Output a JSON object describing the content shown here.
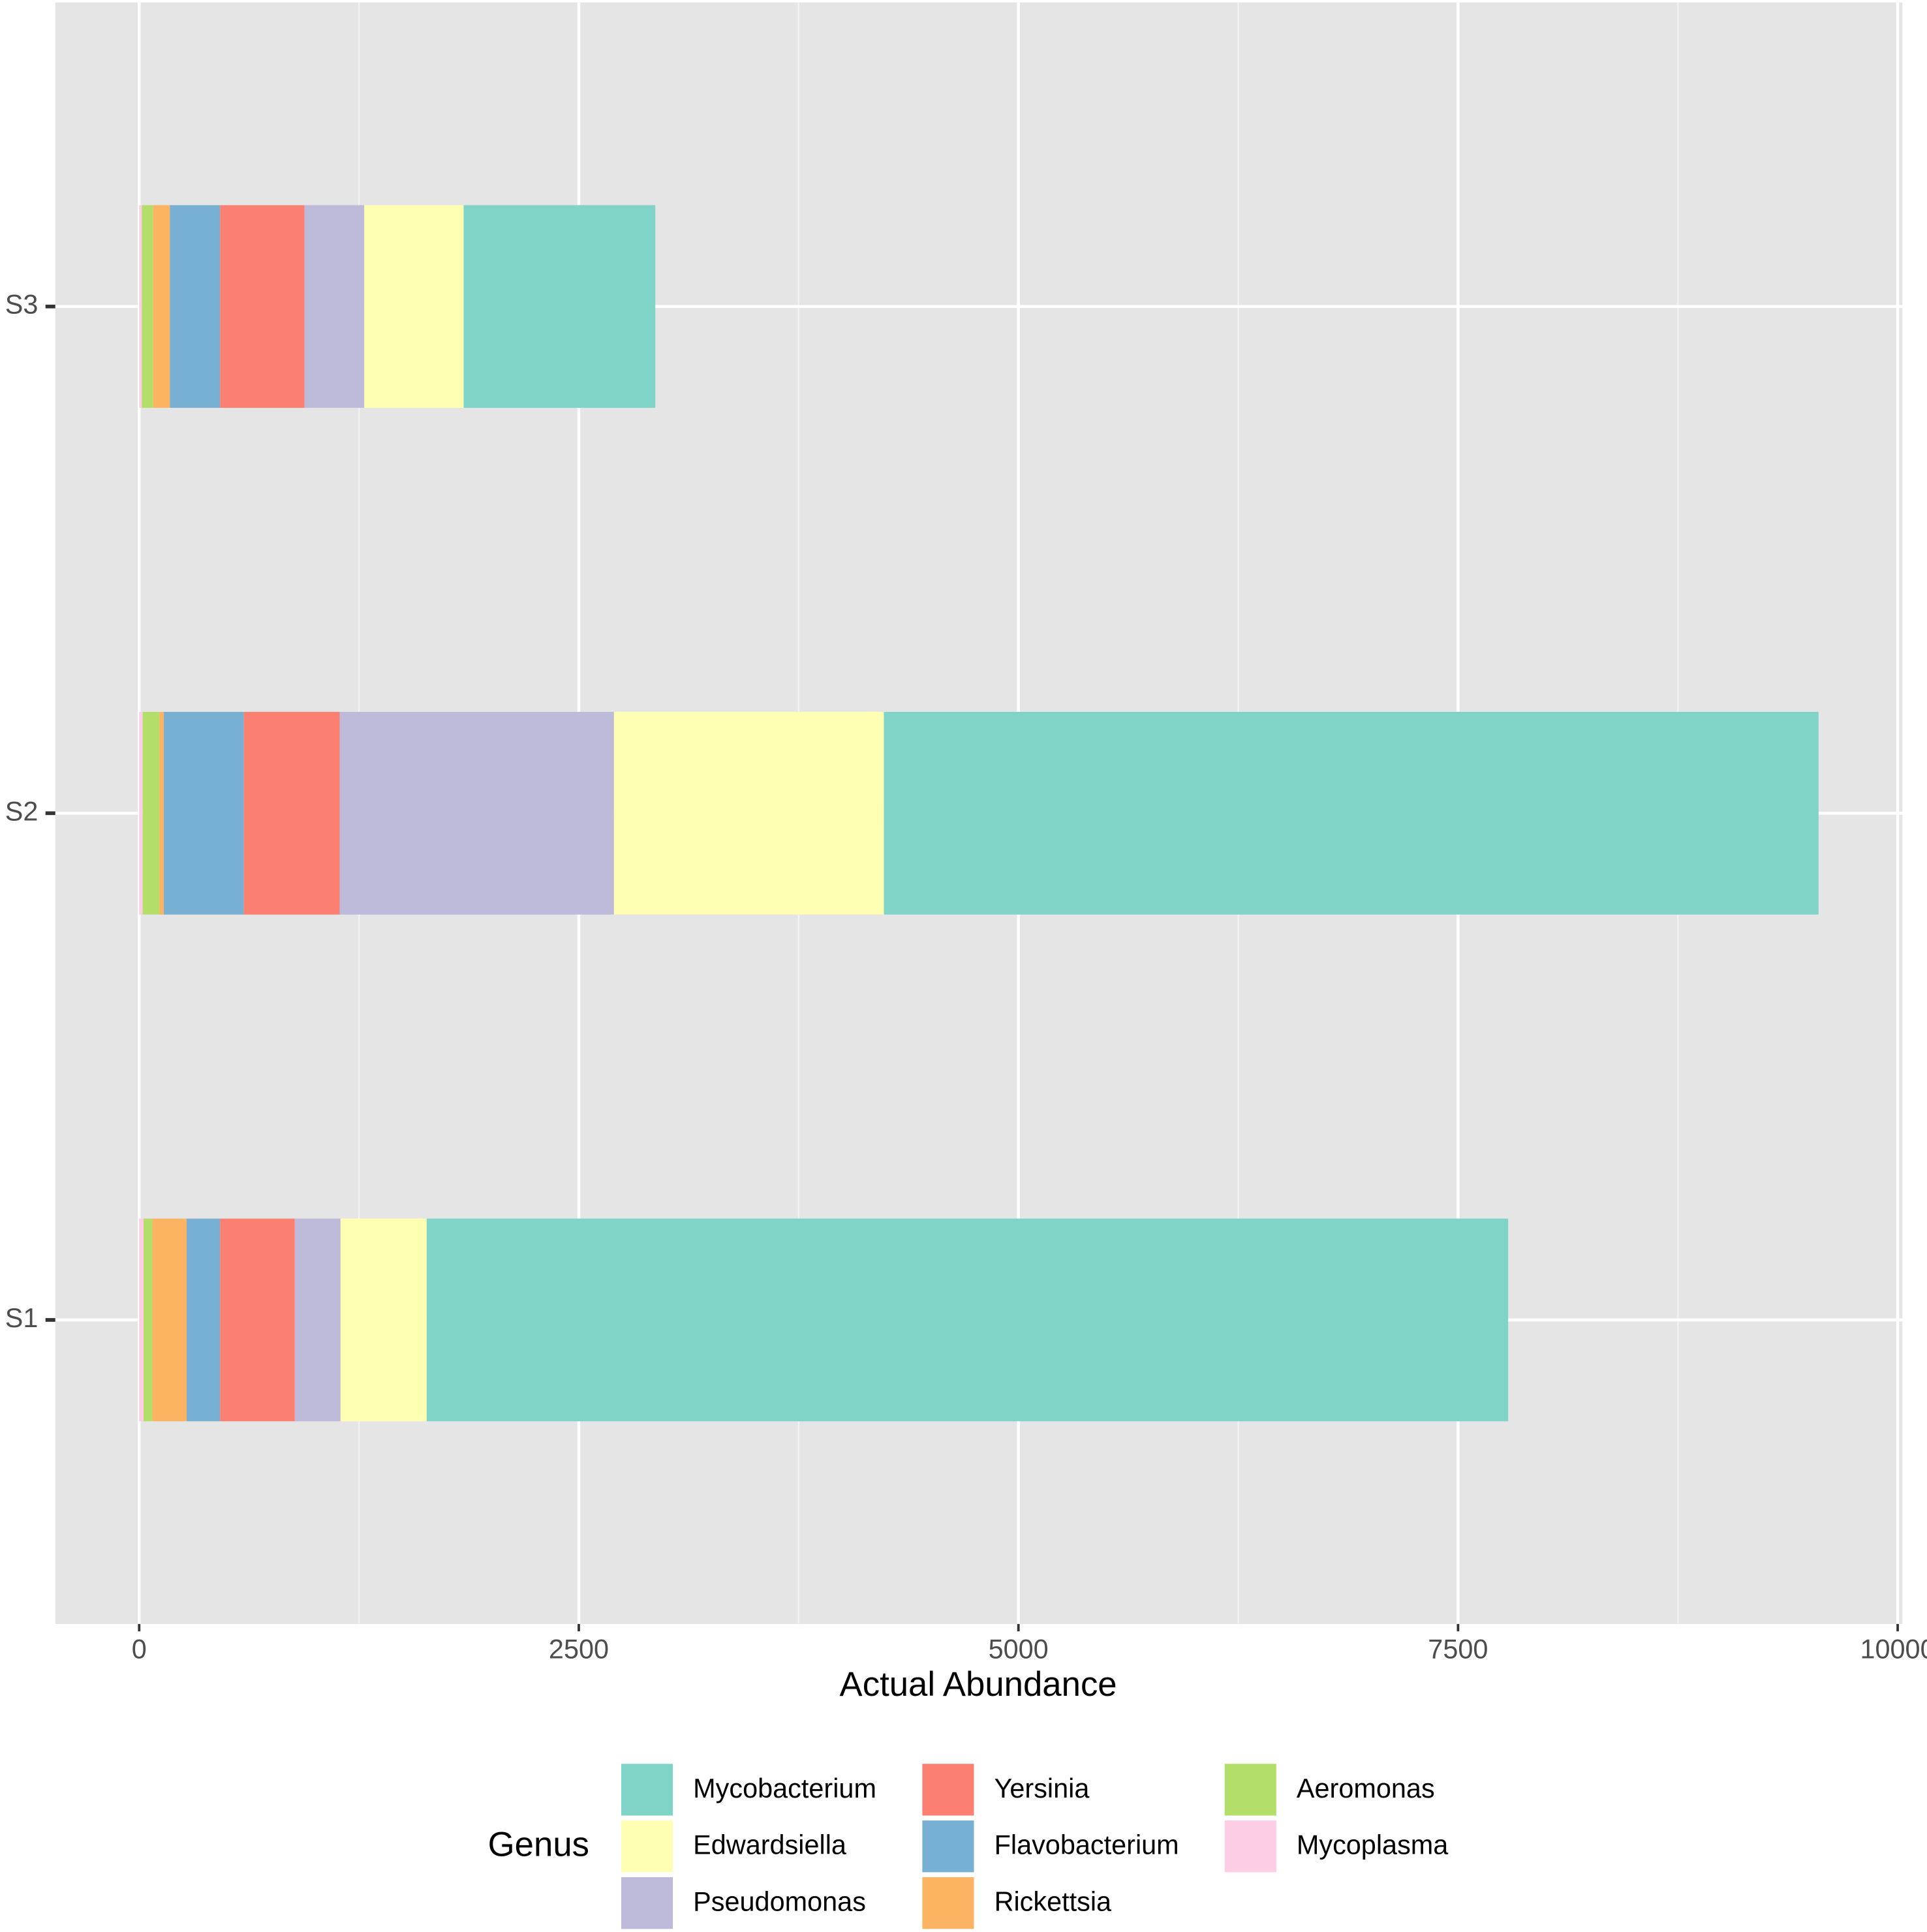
{
  "chart_data": {
    "type": "bar",
    "orientation": "horizontal",
    "stacked": true,
    "x_label": "Actual Abundance",
    "categories": [
      "S1",
      "S2",
      "S3"
    ],
    "series": [
      {
        "name": "Mycobacterium",
        "color": "#7fd3c7",
        "values": [
          6150,
          5315,
          1090
        ]
      },
      {
        "name": "Edwardsiella",
        "color": "#ffffb3",
        "values": [
          490,
          1535,
          565
        ]
      },
      {
        "name": "Pseudomonas",
        "color": "#bebada",
        "values": [
          260,
          1560,
          340
        ]
      },
      {
        "name": "Yersinia",
        "color": "#fb8072",
        "values": [
          425,
          545,
          480
        ]
      },
      {
        "name": "Flavobacterium",
        "color": "#78b0d3",
        "values": [
          190,
          455,
          285
        ]
      },
      {
        "name": "Rickettsia",
        "color": "#fdb462",
        "values": [
          195,
          25,
          95
        ]
      },
      {
        "name": "Aeromonas",
        "color": "#b3de69",
        "values": [
          50,
          95,
          65
        ]
      },
      {
        "name": "Mycoplasma",
        "color": "#fccde5",
        "values": [
          25,
          20,
          15
        ]
      }
    ],
    "xlim": [
      -477,
      10027
    ],
    "xticks": [
      0,
      2500,
      5000,
      7500,
      10000
    ],
    "grid": true,
    "legend": {
      "title": "Genus",
      "position": "bottom",
      "columns": 3
    }
  }
}
